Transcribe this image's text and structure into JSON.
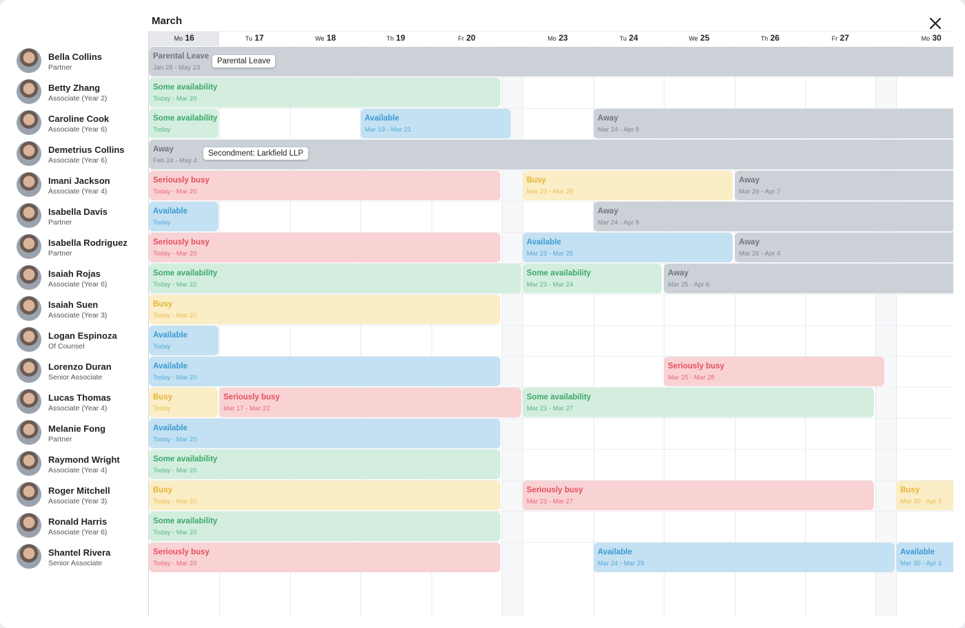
{
  "header": {
    "title": "March"
  },
  "days": [
    {
      "dow": "Mo",
      "day": 16
    },
    {
      "dow": "Tu",
      "day": 17
    },
    {
      "dow": "We",
      "day": 18
    },
    {
      "dow": "Th",
      "day": 19
    },
    {
      "dow": "Fr",
      "day": 20
    },
    {
      "dow": "Mo",
      "day": 23
    },
    {
      "dow": "Tu",
      "day": 24
    },
    {
      "dow": "We",
      "day": 25
    },
    {
      "dow": "Th",
      "day": 26
    },
    {
      "dow": "Fr",
      "day": 27
    },
    {
      "dow": "Mo",
      "day": 30
    }
  ],
  "people": [
    {
      "name": "Bella Collins",
      "role": "Partner",
      "bookings": [
        {
          "status": "Parental Leave",
          "dates": "Jan 28 - May 23",
          "color": "#ccd1d8"
        }
      ],
      "tooltip": "Parental Leave"
    },
    {
      "name": "Betty Zhang",
      "role": "Associate (Year 2)",
      "bookings": [
        {
          "status": "Some availability",
          "dates": "Today - Mar 20",
          "color": "#d3eedf"
        }
      ]
    },
    {
      "name": "Caroline Cook",
      "role": "Associate (Year 6)",
      "bookings": [
        {
          "status": "Some availability",
          "dates": "Today",
          "color": "#d3eedf"
        },
        {
          "status": "Available",
          "dates": "Mar 19 - Mar 21",
          "color": "#c3e1f2"
        },
        {
          "status": "Away",
          "dates": "Mar 24 - Apr 8",
          "color": "#ccd1d8"
        }
      ]
    },
    {
      "name": "Demetrius Collins",
      "role": "Associate (Year 6)",
      "bookings": [
        {
          "status": "Away",
          "dates": "Feb 24 - May 4",
          "color": "#ccd1d8"
        }
      ],
      "tooltip": "Secondment: Larkfield LLP"
    },
    {
      "name": "Imani Jackson",
      "role": "Associate (Year 4)",
      "bookings": [
        {
          "status": "Seriously busy",
          "dates": "Today - Mar 20",
          "color": "#f9d2d4"
        },
        {
          "status": "Busy",
          "dates": "Mar 23 - Mar 25",
          "color": "#fbedc5"
        },
        {
          "status": "Away",
          "dates": "Mar 26 - Apr 7",
          "color": "#ccd1d8"
        }
      ]
    },
    {
      "name": "Isabella Davis",
      "role": "Partner",
      "bookings": [
        {
          "status": "Available",
          "dates": "Today",
          "color": "#c3e1f2"
        },
        {
          "status": "Away",
          "dates": "Mar 24 - Apr 8",
          "color": "#ccd1d8"
        }
      ]
    },
    {
      "name": "Isabella Rodriguez",
      "role": "Partner",
      "bookings": [
        {
          "status": "Seriously busy",
          "dates": "Today - Mar 20",
          "color": "#f9d2d4"
        },
        {
          "status": "Available",
          "dates": "Mar 23 - Mar 25",
          "color": "#c3e1f2"
        },
        {
          "status": "Away",
          "dates": "Mar 26 - Apr 4",
          "color": "#ccd1d8"
        }
      ]
    },
    {
      "name": "Isaiah Rojas",
      "role": "Associate (Year 6)",
      "bookings": [
        {
          "status": "Some availability",
          "dates": "Today - Mar 22",
          "color": "#d3eedf"
        },
        {
          "status": "Some availability",
          "dates": "Mar 23 - Mar 24",
          "color": "#d3eedf"
        },
        {
          "status": "Away",
          "dates": "Mar 25 - Apr 6",
          "color": "#ccd1d8"
        }
      ]
    },
    {
      "name": "Isaiah Suen",
      "role": "Associate (Year 3)",
      "bookings": [
        {
          "status": "Busy",
          "dates": "Today - Mar 20",
          "color": "#fbedc5"
        }
      ]
    },
    {
      "name": "Logan Espinoza",
      "role": "Of Counsel",
      "bookings": [
        {
          "status": "Available",
          "dates": "Today",
          "color": "#c3e1f2"
        }
      ]
    },
    {
      "name": "Lorenzo Duran",
      "role": "Senior Associate",
      "bookings": [
        {
          "status": "Available",
          "dates": "Today - Mar 20",
          "color": "#c3e1f2"
        },
        {
          "status": "Seriously busy",
          "dates": "Mar 25 - Mar 28",
          "color": "#f9d2d4"
        }
      ]
    },
    {
      "name": "Lucas Thomas",
      "role": "Associate (Year 4)",
      "bookings": [
        {
          "status": "Busy",
          "dates": "Today",
          "color": "#fbedc5"
        },
        {
          "status": "Seriously busy",
          "dates": "Mar 17 - Mar 22",
          "color": "#f9d2d4"
        },
        {
          "status": "Some availability",
          "dates": "Mar 23 - Mar 27",
          "color": "#d3eedf"
        }
      ]
    },
    {
      "name": "Melanie Fong",
      "role": "Partner",
      "bookings": [
        {
          "status": "Available",
          "dates": "Today - Mar 20",
          "color": "#c3e1f2"
        }
      ]
    },
    {
      "name": "Raymond Wright",
      "role": "Associate (Year 4)",
      "bookings": [
        {
          "status": "Some availability",
          "dates": "Today - Mar 20",
          "color": "#d3eedf"
        }
      ]
    },
    {
      "name": "Roger Mitchell",
      "role": "Associate (Year 3)",
      "bookings": [
        {
          "status": "Busy",
          "dates": "Today - Mar 20",
          "color": "#fbedc5"
        },
        {
          "status": "Seriously busy",
          "dates": "Mar 23 - Mar 27",
          "color": "#f9d2d4"
        },
        {
          "status": "Busy",
          "dates": "Mar 30 - Apr 3",
          "color": "#fbedc5"
        }
      ]
    },
    {
      "name": "Ronald Harris",
      "role": "Associate (Year 6)",
      "bookings": [
        {
          "status": "Some availability",
          "dates": "Today - Mar 20",
          "color": "#d3eedf"
        }
      ]
    },
    {
      "name": "Shantel Rivera",
      "role": "Senior Associate",
      "bookings": [
        {
          "status": "Seriously busy",
          "dates": "Today - Mar 20",
          "color": "#f9d2d4"
        },
        {
          "status": "Available",
          "dates": "Mar 24 - Mar 29",
          "color": "#c3e1f2"
        },
        {
          "status": "Available",
          "dates": "Mar 30 - Apr 3",
          "color": "#c3e1f2"
        }
      ]
    }
  ]
}
